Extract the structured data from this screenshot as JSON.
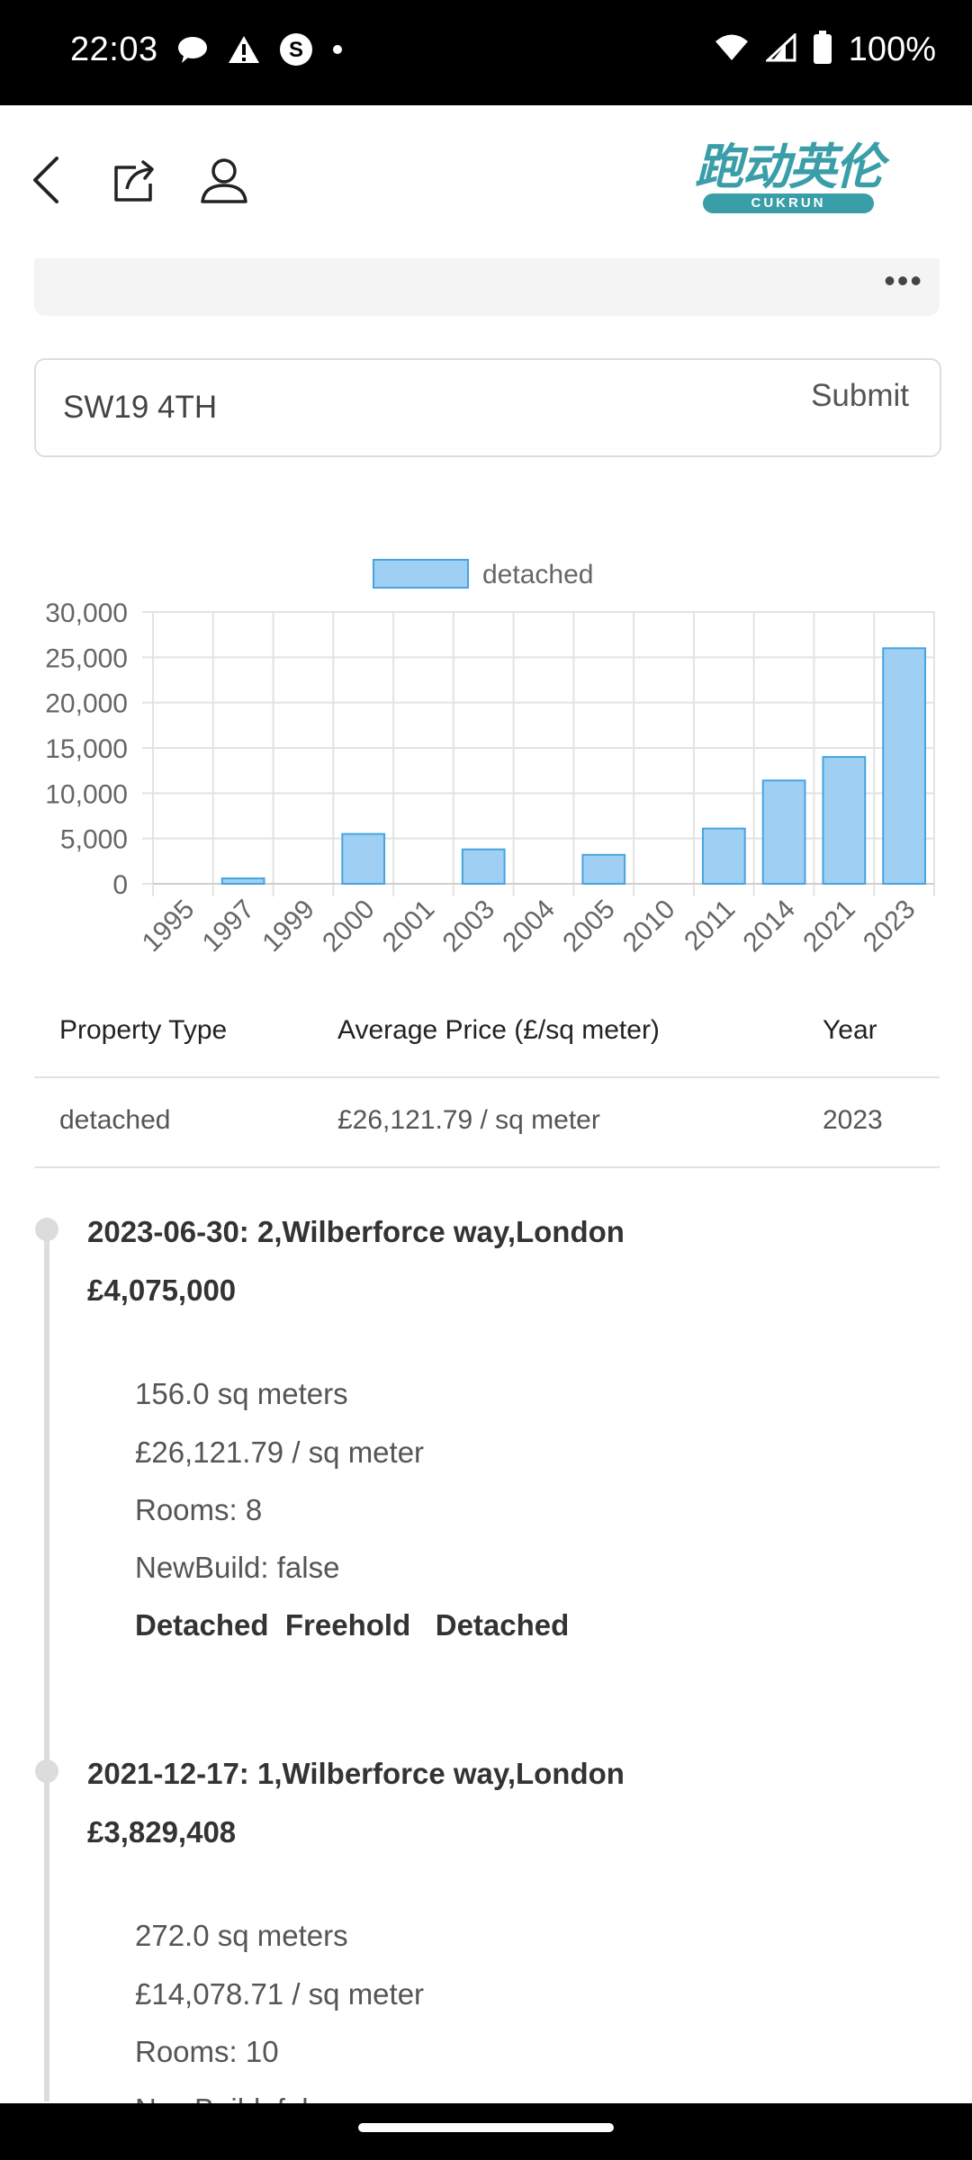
{
  "status_bar": {
    "time": "22:03",
    "battery": "100%",
    "left_icons": [
      "chat-bubble-icon",
      "warning-icon",
      "s-app-icon",
      "dot-icon"
    ],
    "right_icons": [
      "wifi-icon",
      "signal-icon",
      "battery-icon"
    ]
  },
  "header": {
    "logo_chars": "跑动英伦",
    "logo_tag": "CUKRUN",
    "brand_color": "#3a9ea9"
  },
  "search": {
    "value": "SW19 4TH",
    "submit_label": "Submit"
  },
  "chart_data": {
    "type": "bar",
    "legend": [
      "detached"
    ],
    "categories": [
      "1995",
      "1997",
      "1999",
      "2000",
      "2001",
      "2003",
      "2004",
      "2005",
      "2010",
      "2011",
      "2014",
      "2021",
      "2023"
    ],
    "series": [
      {
        "name": "detached",
        "values": [
          0,
          600,
          0,
          5500,
          0,
          3800,
          0,
          3200,
          0,
          6100,
          11400,
          14000,
          26000
        ]
      }
    ],
    "yticks": [
      "0",
      "5,000",
      "10,000",
      "15,000",
      "20,000",
      "25,000",
      "30,000"
    ],
    "ylim": [
      0,
      30000
    ],
    "grid": true,
    "legend_position": "top",
    "bar_fill": "#9fd0f3",
    "bar_stroke": "#47a3e0"
  },
  "table": {
    "headers": [
      "Property Type",
      "Average Price (£/sq meter)",
      "Year"
    ],
    "rows": [
      [
        "detached",
        "£26,121.79 / sq meter",
        "2023"
      ]
    ]
  },
  "sales": [
    {
      "title": "2023-06-30: 2,Wilberforce way,London",
      "price": "£4,075,000",
      "area": "156.0 sq meters",
      "price_per_sqm": "£26,121.79 / sq meter",
      "rooms": "Rooms: 8",
      "newbuild": "NewBuild: false",
      "tags": "Detached  Freehold   Detached"
    },
    {
      "title": "2021-12-17: 1,Wilberforce way,London",
      "price": "£3,829,408",
      "area": "272.0 sq meters",
      "price_per_sqm": "£14,078.71 / sq meter",
      "rooms": "Rooms: 10",
      "newbuild": "NewBuild: false"
    }
  ]
}
